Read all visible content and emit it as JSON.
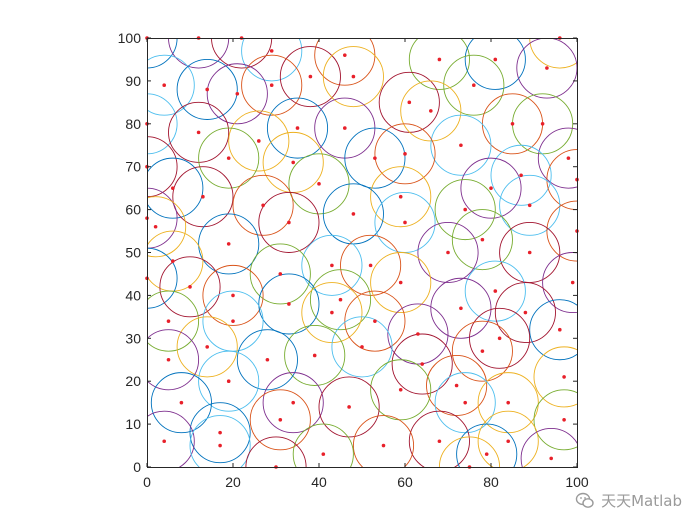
{
  "watermark": {
    "text": "天天Matlab"
  },
  "colors": {
    "point": "#e8202a",
    "axis": "#262626",
    "palette": [
      "#0072BD",
      "#D95319",
      "#EDB120",
      "#7E2F8E",
      "#77AC30",
      "#4DBEEE",
      "#A2142F"
    ]
  },
  "chart_data": {
    "type": "scatter",
    "title": "",
    "xlabel": "",
    "ylabel": "",
    "xlim": [
      0,
      100
    ],
    "ylim": [
      0,
      100
    ],
    "grid": false,
    "legend": "none",
    "xticks": [
      "0",
      "20",
      "40",
      "60",
      "80",
      "100"
    ],
    "yticks": [
      "0",
      "10",
      "20",
      "30",
      "40",
      "50",
      "60",
      "70",
      "80",
      "90",
      "100"
    ],
    "circle_radius": 7,
    "points": [
      {
        "x": 0,
        "y": 100
      },
      {
        "x": 12,
        "y": 100
      },
      {
        "x": 22,
        "y": 100
      },
      {
        "x": 96,
        "y": 100
      },
      {
        "x": 29,
        "y": 97
      },
      {
        "x": 46,
        "y": 96
      },
      {
        "x": 68,
        "y": 95
      },
      {
        "x": 81,
        "y": 95
      },
      {
        "x": 93,
        "y": 93
      },
      {
        "x": 38,
        "y": 91
      },
      {
        "x": 48,
        "y": 91
      },
      {
        "x": 4,
        "y": 89
      },
      {
        "x": 29,
        "y": 89
      },
      {
        "x": 76,
        "y": 89
      },
      {
        "x": 14,
        "y": 88
      },
      {
        "x": 21,
        "y": 87
      },
      {
        "x": 61,
        "y": 85
      },
      {
        "x": 66,
        "y": 83
      },
      {
        "x": 0,
        "y": 80
      },
      {
        "x": 85,
        "y": 80
      },
      {
        "x": 92,
        "y": 80
      },
      {
        "x": 35,
        "y": 79
      },
      {
        "x": 46,
        "y": 79
      },
      {
        "x": 12,
        "y": 78
      },
      {
        "x": 26,
        "y": 76
      },
      {
        "x": 73,
        "y": 75
      },
      {
        "x": 60,
        "y": 73
      },
      {
        "x": 19,
        "y": 72
      },
      {
        "x": 53,
        "y": 72
      },
      {
        "x": 98,
        "y": 72
      },
      {
        "x": 0,
        "y": 70
      },
      {
        "x": 34,
        "y": 71
      },
      {
        "x": 87,
        "y": 68
      },
      {
        "x": 100,
        "y": 67
      },
      {
        "x": 40,
        "y": 66
      },
      {
        "x": 6,
        "y": 65
      },
      {
        "x": 80,
        "y": 65
      },
      {
        "x": 13,
        "y": 63
      },
      {
        "x": 59,
        "y": 63
      },
      {
        "x": 89,
        "y": 61
      },
      {
        "x": 27,
        "y": 61
      },
      {
        "x": 74,
        "y": 60
      },
      {
        "x": 48,
        "y": 59
      },
      {
        "x": 0,
        "y": 58
      },
      {
        "x": 33,
        "y": 57
      },
      {
        "x": 2,
        "y": 56
      },
      {
        "x": 60,
        "y": 57
      },
      {
        "x": 100,
        "y": 55
      },
      {
        "x": 78,
        "y": 53
      },
      {
        "x": 19,
        "y": 52
      },
      {
        "x": 70,
        "y": 50
      },
      {
        "x": 89,
        "y": 50
      },
      {
        "x": 6,
        "y": 48
      },
      {
        "x": 43,
        "y": 47
      },
      {
        "x": 52,
        "y": 47
      },
      {
        "x": 31,
        "y": 45
      },
      {
        "x": 0,
        "y": 44
      },
      {
        "x": 99,
        "y": 43
      },
      {
        "x": 10,
        "y": 42
      },
      {
        "x": 59,
        "y": 43
      },
      {
        "x": 81,
        "y": 41
      },
      {
        "x": 20,
        "y": 40
      },
      {
        "x": 45,
        "y": 39
      },
      {
        "x": 33,
        "y": 38
      },
      {
        "x": 73,
        "y": 37
      },
      {
        "x": 88,
        "y": 36
      },
      {
        "x": 43,
        "y": 36
      },
      {
        "x": 20,
        "y": 34
      },
      {
        "x": 53,
        "y": 34
      },
      {
        "x": 5,
        "y": 34
      },
      {
        "x": 96,
        "y": 32
      },
      {
        "x": 63,
        "y": 31
      },
      {
        "x": 82,
        "y": 30
      },
      {
        "x": 14,
        "y": 28
      },
      {
        "x": 50,
        "y": 28
      },
      {
        "x": 78,
        "y": 27
      },
      {
        "x": 39,
        "y": 26
      },
      {
        "x": 28,
        "y": 25
      },
      {
        "x": 5,
        "y": 25
      },
      {
        "x": 64,
        "y": 24
      },
      {
        "x": 97,
        "y": 21
      },
      {
        "x": 19,
        "y": 20
      },
      {
        "x": 72,
        "y": 19
      },
      {
        "x": 59,
        "y": 18
      },
      {
        "x": 8,
        "y": 15
      },
      {
        "x": 34,
        "y": 15
      },
      {
        "x": 47,
        "y": 14
      },
      {
        "x": 84,
        "y": 15
      },
      {
        "x": 74,
        "y": 15
      },
      {
        "x": 31,
        "y": 11
      },
      {
        "x": 97,
        "y": 11
      },
      {
        "x": 17,
        "y": 8
      },
      {
        "x": 4,
        "y": 6
      },
      {
        "x": 68,
        "y": 6
      },
      {
        "x": 84,
        "y": 6
      },
      {
        "x": 17,
        "y": 5
      },
      {
        "x": 55,
        "y": 5
      },
      {
        "x": 41,
        "y": 3
      },
      {
        "x": 79,
        "y": 3
      },
      {
        "x": 94,
        "y": 2
      },
      {
        "x": 30,
        "y": 0
      },
      {
        "x": 75,
        "y": 0
      }
    ]
  }
}
